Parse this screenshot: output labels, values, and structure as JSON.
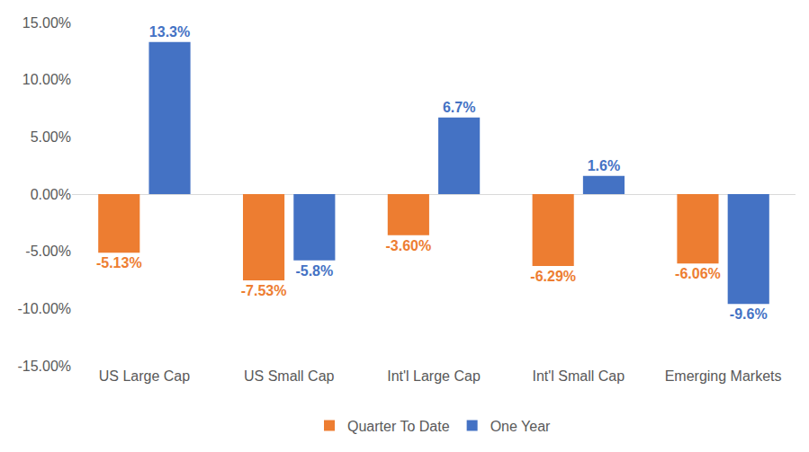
{
  "chart_data": {
    "type": "bar",
    "categories": [
      "US Large Cap",
      "US Small Cap",
      "Int'l Large Cap",
      "Int'l Small Cap",
      "Emerging Markets"
    ],
    "series": [
      {
        "name": "Quarter To Date",
        "color": "#ed7d31",
        "values": [
          -5.13,
          -7.53,
          -3.6,
          -6.29,
          -6.06
        ],
        "value_labels": [
          "-5.13%",
          "-7.53%",
          "-3.60%",
          "-6.29%",
          "-6.06%"
        ]
      },
      {
        "name": "One Year",
        "color": "#4472c4",
        "values": [
          13.3,
          -5.8,
          6.7,
          1.6,
          -9.6
        ],
        "value_labels": [
          "13.3%",
          "-5.8%",
          "6.7%",
          "1.6%",
          "-9.6%"
        ]
      }
    ],
    "ylim": [
      -15,
      15
    ],
    "yticks": [
      {
        "value": -15,
        "label": "-15.00%"
      },
      {
        "value": -10,
        "label": "-10.00%"
      },
      {
        "value": -5,
        "label": "-5.00%"
      },
      {
        "value": 0,
        "label": "0.00%"
      },
      {
        "value": 5,
        "label": "5.00%"
      },
      {
        "value": 10,
        "label": "10.00%"
      },
      {
        "value": 15,
        "label": "15.00%"
      }
    ],
    "grid": false,
    "data_labels": true,
    "legend": "bottom"
  }
}
